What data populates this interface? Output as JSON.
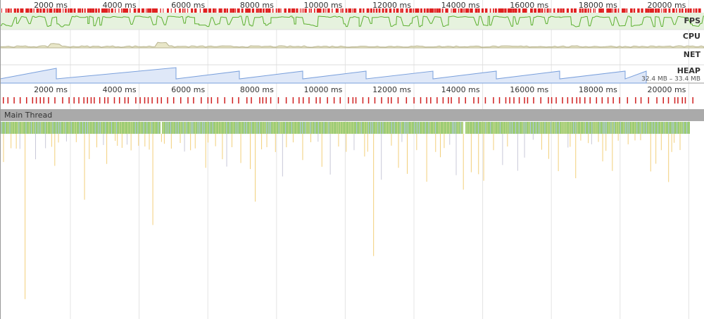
{
  "overview": {
    "ticks": [
      "2000 ms",
      "4000 ms",
      "6000 ms",
      "8000 ms",
      "10000 ms",
      "12000 ms",
      "14000 ms",
      "16000 ms",
      "18000 ms",
      "20000 ms"
    ],
    "tracks": [
      "FPS",
      "CPU",
      "NET",
      "HEAP"
    ],
    "heap_range": "32.4 MB – 33.4 MB"
  },
  "timeline": {
    "ticks": [
      "2000 ms",
      "4000 ms",
      "6000 ms",
      "8000 ms",
      "10000 ms",
      "12000 ms",
      "14000 ms",
      "16000 ms",
      "18000 ms",
      "20000 ms"
    ],
    "thread": "Main Thread"
  }
}
